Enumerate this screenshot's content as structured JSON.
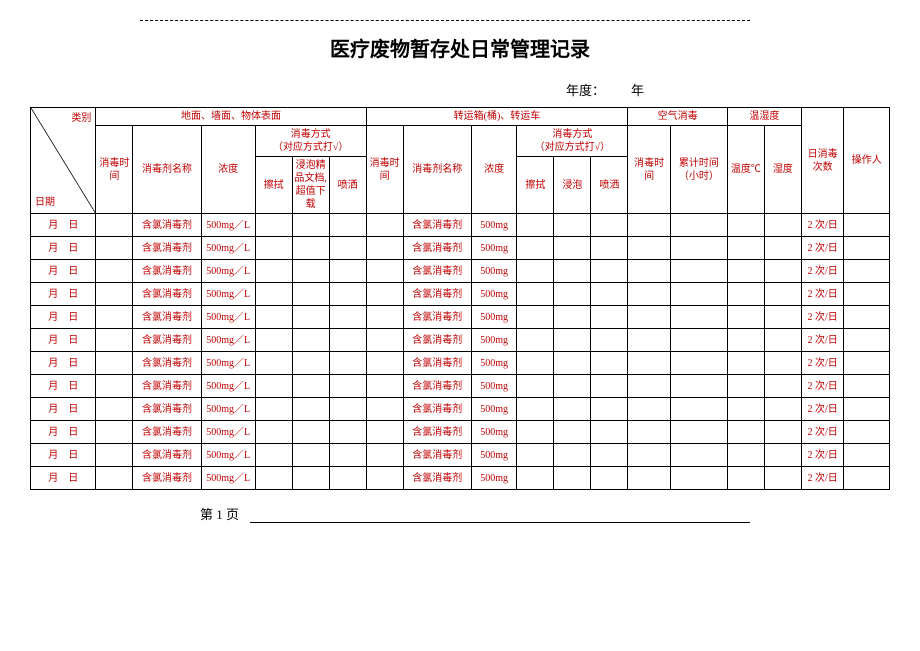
{
  "title": "医疗废物暂存处日常管理记录",
  "year_label": "年度：",
  "year_suffix": "年",
  "footer_page": "第 1 页",
  "diag": {
    "top": "类别",
    "bottom": "日期"
  },
  "groups": {
    "surface": "地面、墙面、物体表面",
    "transport": "转运箱(桶)、转运车",
    "air": "空气消毒",
    "temphum": "温湿度",
    "daily": "日消毒次数",
    "operator": "操作人"
  },
  "headers": {
    "disinfect_time": "消毒时间",
    "agent_name": "消毒剂名称",
    "concentration": "浓度",
    "method": "消毒方式",
    "method_sub": "（对应方式打√）",
    "wipe": "擦拭",
    "soak_text": "浸泡精品文档,超值下载",
    "soak": "浸泡",
    "spray": "喷洒",
    "air_duration": "累计时间（小时）",
    "temp": "温度℃",
    "humidity": "湿度"
  },
  "row_defaults": {
    "date": "月　日",
    "agent": "含氯消毒剂",
    "conc1": "500mg／L",
    "conc2": "500mg",
    "daily": "2 次/日"
  },
  "rows": [
    {
      "date": "月　日",
      "agent1": "含氯消毒剂",
      "conc1": "500mg／L",
      "agent2": "含氯消毒剂",
      "conc2": "500mg",
      "daily": "2 次/日"
    },
    {
      "date": "月　日",
      "agent1": "含氯消毒剂",
      "conc1": "500mg／L",
      "agent2": "含氯消毒剂",
      "conc2": "500mg",
      "daily": "2 次/日"
    },
    {
      "date": "月　日",
      "agent1": "含氯消毒剂",
      "conc1": "500mg／L",
      "agent2": "含氯消毒剂",
      "conc2": "500mg",
      "daily": "2 次/日"
    },
    {
      "date": "月　日",
      "agent1": "含氯消毒剂",
      "conc1": "500mg／L",
      "agent2": "含氯消毒剂",
      "conc2": "500mg",
      "daily": "2 次/日"
    },
    {
      "date": "月　日",
      "agent1": "含氯消毒剂",
      "conc1": "500mg／L",
      "agent2": "含氯消毒剂",
      "conc2": "500mg",
      "daily": "2 次/日"
    },
    {
      "date": "月　日",
      "agent1": "含氯消毒剂",
      "conc1": "500mg／L",
      "agent2": "含氯消毒剂",
      "conc2": "500mg",
      "daily": "2 次/日"
    },
    {
      "date": "月　日",
      "agent1": "含氯消毒剂",
      "conc1": "500mg／L",
      "agent2": "含氯消毒剂",
      "conc2": "500mg",
      "daily": "2 次/日"
    },
    {
      "date": "月　日",
      "agent1": "含氯消毒剂",
      "conc1": "500mg／L",
      "agent2": "含氯消毒剂",
      "conc2": "500mg",
      "daily": "2 次/日"
    },
    {
      "date": "月　日",
      "agent1": "含氯消毒剂",
      "conc1": "500mg／L",
      "agent2": "含氯消毒剂",
      "conc2": "500mg",
      "daily": "2 次/日"
    },
    {
      "date": "月　日",
      "agent1": "含氯消毒剂",
      "conc1": "500mg／L",
      "agent2": "含氯消毒剂",
      "conc2": "500mg",
      "daily": "2 次/日"
    },
    {
      "date": "月　日",
      "agent1": "含氯消毒剂",
      "conc1": "500mg／L",
      "agent2": "含氯消毒剂",
      "conc2": "500mg",
      "daily": "2 次/日"
    },
    {
      "date": "月　日",
      "agent1": "含氯消毒剂",
      "conc1": "500mg／L",
      "agent2": "含氯消毒剂",
      "conc2": "500mg",
      "daily": "2 次/日"
    }
  ],
  "colors": {
    "red": "#c00000",
    "black": "#000000",
    "bg": "#ffffff"
  }
}
